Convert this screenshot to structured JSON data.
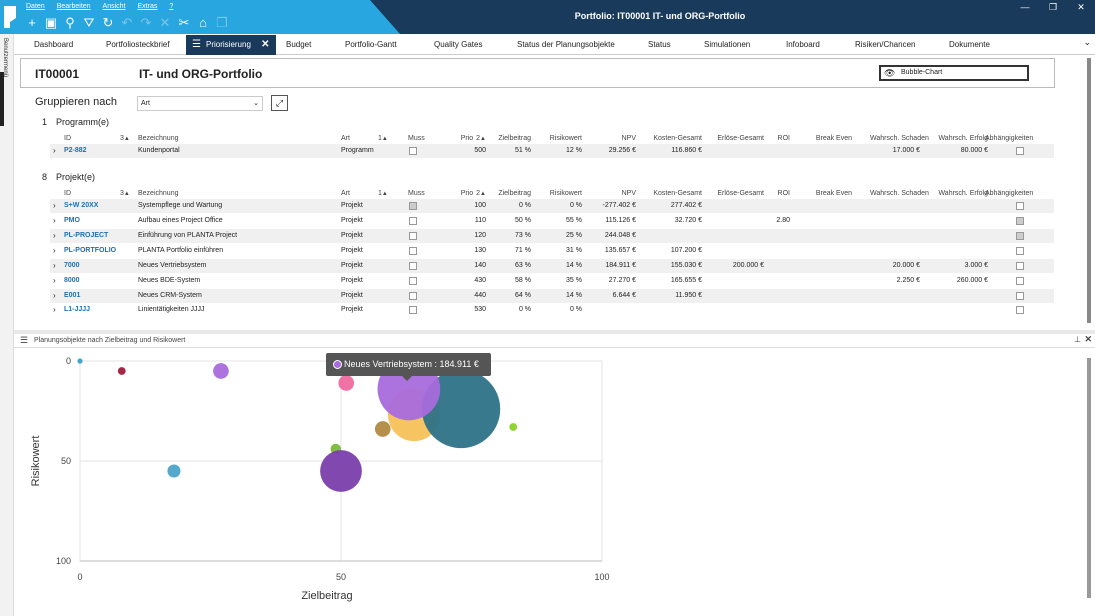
{
  "window": {
    "title": "Portfolio: IT00001 IT- und ORG-Portfolio"
  },
  "menu": [
    "Daten",
    "Bearbeiten",
    "Ansicht",
    "Extras",
    "?"
  ],
  "toolbar_icons": [
    "plus-icon",
    "save-icon",
    "search-icon",
    "filter-icon",
    "refresh-icon",
    "undo-icon",
    "redo-icon",
    "cancel-icon",
    "tools-icon",
    "home-icon",
    "layers-icon"
  ],
  "sidebar": {
    "label": "Benutzermenü"
  },
  "tabs": [
    {
      "label": "Dashboard",
      "active": false
    },
    {
      "label": "Portfoliosteckbrief",
      "active": false
    },
    {
      "label": "Priorisierung",
      "active": true
    },
    {
      "label": "Budget",
      "active": false
    },
    {
      "label": "Portfolio-Gantt",
      "active": false
    },
    {
      "label": "Quality Gates",
      "active": false
    },
    {
      "label": "Status der Planungsobjekte",
      "active": false
    },
    {
      "label": "Status",
      "active": false
    },
    {
      "label": "Simulationen",
      "active": false
    },
    {
      "label": "Infoboard",
      "active": false
    },
    {
      "label": "Risiken/Chancen",
      "active": false
    },
    {
      "label": "Dokumente",
      "active": false
    }
  ],
  "portfolio": {
    "id": "IT00001",
    "name": "IT- und ORG-Portfolio",
    "view": "Bubble-Chart"
  },
  "grouping": {
    "label": "Gruppieren nach",
    "value": "Art"
  },
  "columns": [
    "ID",
    "Bezeichnung",
    "Art",
    "Muss",
    "Prio",
    "Zielbeitrag",
    "Risikowert",
    "NPV",
    "Kosten-Gesamt",
    "Erlöse-Gesamt",
    "ROI",
    "Break Even",
    "Wahrsch. Schaden",
    "Wahrsch. Erfolg",
    "Abhängigkeiten"
  ],
  "sort_markers": {
    "id": "3",
    "art": "1",
    "prio": "2"
  },
  "groups": [
    {
      "count": "1",
      "title": "Programm(e)",
      "rows": [
        {
          "id": "P2-882",
          "name": "Kundenportal",
          "art": "Programm",
          "muss": false,
          "prio": "500",
          "ziel": "51 %",
          "risiko": "12 %",
          "npv": "29.256 €",
          "kosten": "116.860 €",
          "erloese": "",
          "roi": "",
          "be": "",
          "schaden": "17.000 €",
          "erfolg": "80.000 €",
          "abh": false
        }
      ]
    },
    {
      "count": "8",
      "title": "Projekt(e)",
      "rows": [
        {
          "id": "S+W 20XX",
          "name": "Systempflege und Wartung",
          "art": "Projekt",
          "muss": true,
          "prio": "100",
          "ziel": "0 %",
          "risiko": "0 %",
          "npv": "-277.402 €",
          "kosten": "277.402 €",
          "erloese": "",
          "roi": "",
          "be": "",
          "schaden": "",
          "erfolg": "",
          "abh": false
        },
        {
          "id": "PMO",
          "name": "Aufbau eines Project Office",
          "art": "Projekt",
          "muss": false,
          "prio": "110",
          "ziel": "50 %",
          "risiko": "55 %",
          "npv": "115.126 €",
          "kosten": "32.720 €",
          "erloese": "",
          "roi": "2.80",
          "be": "",
          "schaden": "",
          "erfolg": "",
          "abh": true
        },
        {
          "id": "PL-PROJECT",
          "name": "Einführung von PLANTA Project",
          "art": "Projekt",
          "muss": false,
          "prio": "120",
          "ziel": "73 %",
          "risiko": "25 %",
          "npv": "244.048 €",
          "kosten": "",
          "erloese": "",
          "roi": "",
          "be": "",
          "schaden": "",
          "erfolg": "",
          "abh": true
        },
        {
          "id": "PL-PORTFOLIO",
          "name": "PLANTA Portfolio einführen",
          "art": "Projekt",
          "muss": false,
          "prio": "130",
          "ziel": "71 %",
          "risiko": "31 %",
          "npv": "135.657 €",
          "kosten": "107.200 €",
          "erloese": "",
          "roi": "",
          "be": "",
          "schaden": "",
          "erfolg": "",
          "abh": false
        },
        {
          "id": "7000",
          "name": "Neues Vertriebsystem",
          "art": "Projekt",
          "muss": false,
          "prio": "140",
          "ziel": "63 %",
          "risiko": "14 %",
          "npv": "184.911 €",
          "kosten": "155.030 €",
          "erloese": "200.000 €",
          "roi": "",
          "be": "",
          "schaden": "20.000 €",
          "erfolg": "3.000 €",
          "abh": false
        },
        {
          "id": "8000",
          "name": "Neues BDE-System",
          "art": "Projekt",
          "muss": false,
          "prio": "430",
          "ziel": "58 %",
          "risiko": "35 %",
          "npv": "27.270 €",
          "kosten": "165.655 €",
          "erloese": "",
          "roi": "",
          "be": "",
          "schaden": "2.250 €",
          "erfolg": "260.000 €",
          "abh": false
        },
        {
          "id": "E001",
          "name": "Neues CRM-System",
          "art": "Projekt",
          "muss": false,
          "prio": "440",
          "ziel": "64 %",
          "risiko": "14 %",
          "npv": "6.644 €",
          "kosten": "11.950 €",
          "erloese": "",
          "roi": "",
          "be": "",
          "schaden": "",
          "erfolg": "",
          "abh": false
        },
        {
          "id": "L1-JJJJ",
          "name": "Linientätigkeiten JJJJ",
          "art": "Projekt",
          "muss": false,
          "prio": "530",
          "ziel": "0 %",
          "risiko": "0 %",
          "npv": "",
          "kosten": "",
          "erloese": "",
          "roi": "",
          "be": "",
          "schaden": "",
          "erfolg": "",
          "abh": false
        }
      ]
    }
  ],
  "chart_panel": {
    "title": "Planungsobjekte nach Zielbeitrag und Risikowert"
  },
  "tooltip": {
    "text": "Neues Vertriebsystem : 184.911 €"
  },
  "chart_data": {
    "type": "scatter",
    "xlabel": "Zielbeitrag",
    "ylabel": "Risikowert",
    "xlim": [
      0,
      100
    ],
    "ylim": [
      0,
      100
    ],
    "y_inverted": true,
    "xticks": [
      "0",
      "50",
      "100"
    ],
    "yticks": [
      "0",
      "50",
      "100"
    ],
    "grid": true,
    "points": [
      {
        "x": 0,
        "y": 0,
        "r": 1,
        "color": "#3aa0c8"
      },
      {
        "x": 8,
        "y": 5,
        "r": 1.5,
        "color": "#a01e3c"
      },
      {
        "x": 27,
        "y": 5,
        "r": 3,
        "color": "#a86cdc"
      },
      {
        "x": 18,
        "y": 55,
        "r": 2.5,
        "color": "#4aa3c8"
      },
      {
        "x": 51,
        "y": 11,
        "r": 3,
        "color": "#f06ba0"
      },
      {
        "x": 58,
        "y": 34,
        "r": 3,
        "color": "#b08a40"
      },
      {
        "x": 49,
        "y": 44,
        "r": 2,
        "color": "#7cb83a"
      },
      {
        "x": 50,
        "y": 55,
        "r": 8,
        "color": "#7a3eac"
      },
      {
        "x": 64,
        "y": 27,
        "r": 10,
        "color": "#f5c25a"
      },
      {
        "x": 73,
        "y": 24,
        "r": 15,
        "color": "#2d7288"
      },
      {
        "x": 63,
        "y": 14,
        "r": 12,
        "color": "#a86cdc"
      },
      {
        "x": 83,
        "y": 33,
        "r": 1.5,
        "color": "#8ad12a"
      }
    ]
  }
}
